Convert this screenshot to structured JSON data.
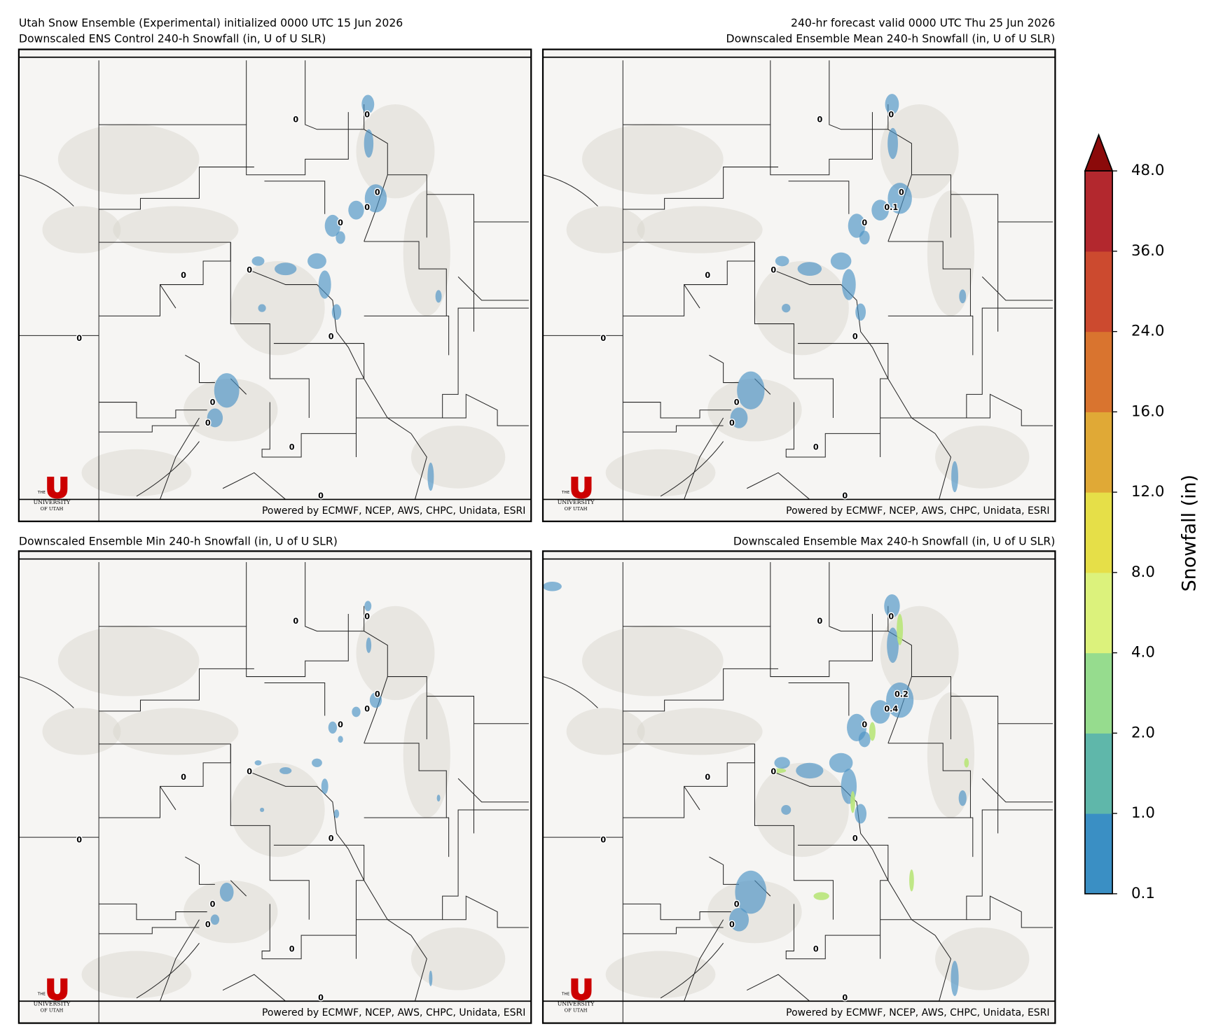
{
  "header": {
    "left_line1": "Utah Snow Ensemble (Experimental) initialized 0000 UTC 15 Jun 2026",
    "right_line1": "240-hr forecast valid 0000 UTC Thu 25 Jun 2026"
  },
  "panels": [
    {
      "title": "Downscaled ENS Control 240-h Snowfall (in, U of U SLR)",
      "point_labels": [
        "0",
        "0",
        "0",
        "0",
        "0",
        "0",
        "0",
        "0",
        "0",
        "0",
        "0",
        "0",
        "0"
      ]
    },
    {
      "title": "Downscaled Ensemble Mean 240-h Snowfall (in, U of U SLR)",
      "point_labels": [
        "0",
        "0",
        "0",
        "0.1",
        "0",
        "0",
        "0",
        "0",
        "0",
        "0",
        "0",
        "0",
        "0"
      ]
    },
    {
      "title": "Downscaled Ensemble Min 240-h Snowfall (in, U of U SLR)",
      "point_labels": [
        "0",
        "0",
        "0",
        "0",
        "0",
        "0",
        "0",
        "0",
        "0",
        "0",
        "0",
        "0",
        "0"
      ]
    },
    {
      "title": "Downscaled Ensemble Max 240-h Snowfall (in, U of U SLR)",
      "point_labels": [
        "0",
        "0",
        "0.2",
        "0.4",
        "0",
        "0",
        "0",
        "0",
        "0",
        "0",
        "0",
        "0",
        "0"
      ]
    }
  ],
  "credit": "Powered by ECMWF, NCEP, AWS, CHPC, Unidata, ESRI",
  "logo": {
    "line1": "THE",
    "line2": "UNIVERSITY",
    "line3": "OF UTAH"
  },
  "colorbar": {
    "label": "Snowfall (in)",
    "ticks": [
      "0.1",
      "1.0",
      "2.0",
      "4.0",
      "8.0",
      "12.0",
      "16.0",
      "24.0",
      "36.0",
      "48.0"
    ],
    "colors": [
      "#3a8fc4",
      "#5fb7aa",
      "#96dc8e",
      "#dcf27c",
      "#e6df48",
      "#e0a936",
      "#d9742f",
      "#cc4a2f",
      "#b3282e"
    ],
    "extend_color": "#8b0a0a"
  }
}
